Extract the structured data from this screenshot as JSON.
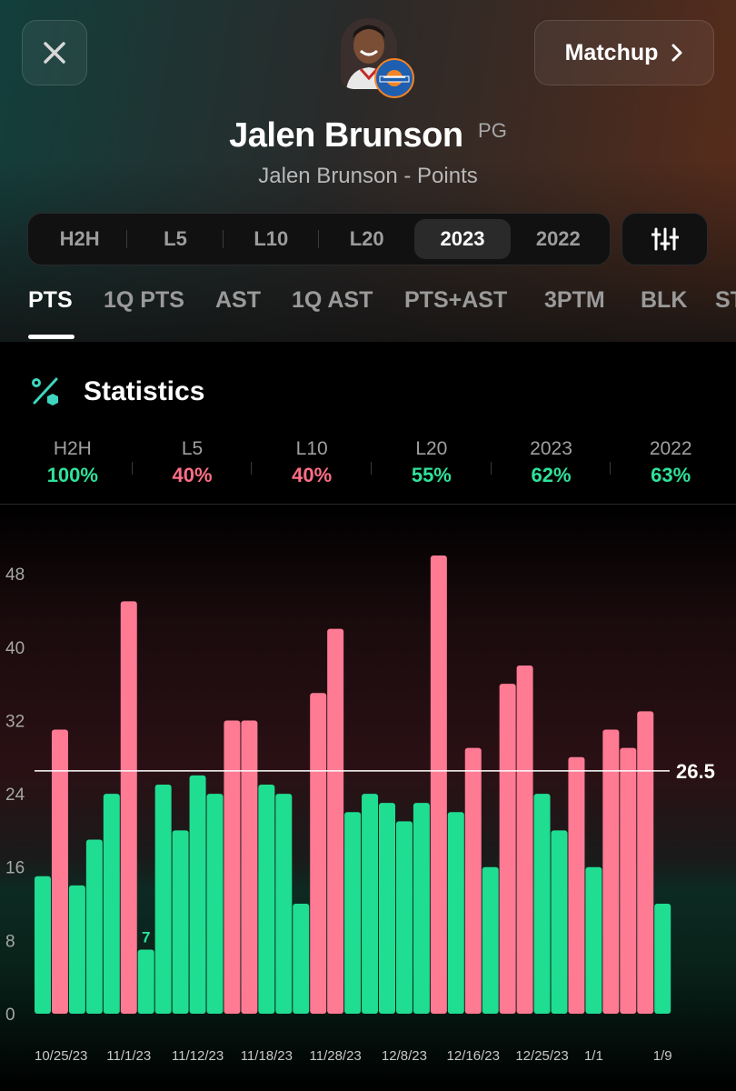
{
  "header": {
    "matchup_label": "Matchup",
    "player_name": "Jalen Brunson",
    "position": "PG",
    "subtitle": "Jalen Brunson - Points"
  },
  "periods": [
    {
      "label": "H2H",
      "active": false
    },
    {
      "label": "L5",
      "active": false
    },
    {
      "label": "L10",
      "active": false
    },
    {
      "label": "L20",
      "active": false
    },
    {
      "label": "2023",
      "active": true
    },
    {
      "label": "2022",
      "active": false
    }
  ],
  "stat_tabs": [
    {
      "label": "PTS",
      "active": true
    },
    {
      "label": "1Q PTS",
      "active": false
    },
    {
      "label": "AST",
      "active": false
    },
    {
      "label": "1Q AST",
      "active": false
    },
    {
      "label": "PTS+AST",
      "active": false
    },
    {
      "label": "3PTM",
      "active": false
    },
    {
      "label": "BLK",
      "active": false
    },
    {
      "label": "ST",
      "active": false
    }
  ],
  "statistics": {
    "title": "Statistics",
    "hit_rates": [
      {
        "label": "H2H",
        "value": "100%",
        "status": "hit"
      },
      {
        "label": "L5",
        "value": "40%",
        "status": "miss"
      },
      {
        "label": "L10",
        "value": "40%",
        "status": "miss"
      },
      {
        "label": "L20",
        "value": "55%",
        "status": "hit"
      },
      {
        "label": "2023",
        "value": "62%",
        "status": "hit"
      },
      {
        "label": "2022",
        "value": "63%",
        "status": "hit"
      }
    ]
  },
  "colors": {
    "over": "#ff7a93",
    "under": "#1fdd91",
    "hit_text": "#2fe29a",
    "miss_text": "#ff6f86"
  },
  "icons": {
    "close": "close-icon",
    "chevron": "chevron-right-icon",
    "filter": "sliders-icon",
    "statistics": "percent-icon"
  },
  "chart_data": {
    "type": "bar",
    "line": {
      "value": 26.5,
      "label": "26.5"
    },
    "ylim": [
      0,
      50
    ],
    "yticks": [
      0,
      8,
      16,
      24,
      32,
      40,
      48
    ],
    "values": [
      15,
      31,
      14,
      19,
      24,
      45,
      7,
      25,
      20,
      26,
      24,
      32,
      32,
      25,
      24,
      12,
      35,
      42,
      22,
      24,
      23,
      21,
      23,
      50,
      22,
      29,
      16,
      36,
      38,
      24,
      20,
      28,
      16,
      31,
      29,
      33,
      12
    ],
    "x_tick_labels": [
      {
        "index": 0,
        "label": "10/25/23"
      },
      {
        "index": 5,
        "label": "11/1/23"
      },
      {
        "index": 9,
        "label": "11/12/23"
      },
      {
        "index": 13,
        "label": "11/18/23"
      },
      {
        "index": 17,
        "label": "11/28/23"
      },
      {
        "index": 21,
        "label": "12/8/23"
      },
      {
        "index": 25,
        "label": "12/16/23"
      },
      {
        "index": 29,
        "label": "12/25/23"
      },
      {
        "index": 32,
        "label": "1/1"
      },
      {
        "index": 36,
        "label": "1/9"
      }
    ],
    "annotations": [
      {
        "index": 6,
        "label": "7"
      }
    ]
  }
}
